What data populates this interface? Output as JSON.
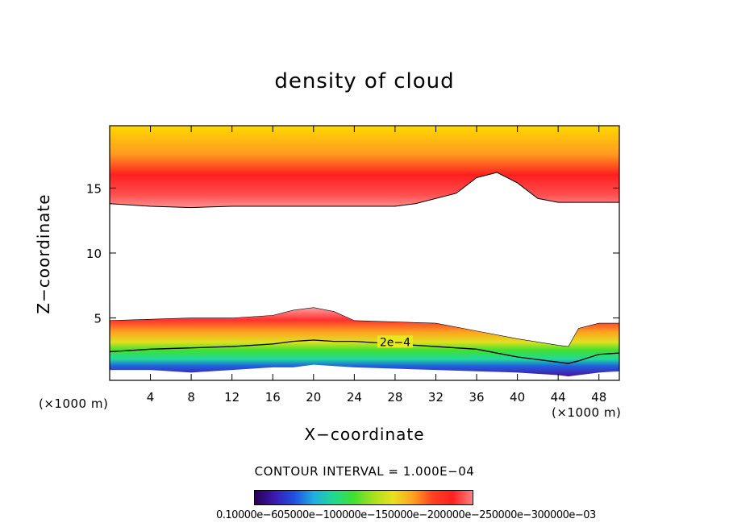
{
  "chart_data": {
    "type": "heatmap",
    "title": "density of cloud",
    "xlabel": "X−coordinate",
    "ylabel": "Z−coordinate",
    "x_unit_label_left": "(×1000 m)",
    "x_unit_label_right": "(×1000 m)",
    "xlim": [
      0,
      50
    ],
    "ylim": [
      0.2,
      19.8
    ],
    "x_ticks": [
      4,
      8,
      12,
      16,
      20,
      24,
      28,
      32,
      36,
      40,
      44,
      48
    ],
    "y_ticks": [
      5,
      10,
      15
    ],
    "contour_interval_text": "CONTOUR INTERVAL = 1.000E−04",
    "contour_label": "2e−4",
    "colorbar_labels_text": "0.10000e−605000e−100000e−150000e−200000e−250000e−300000e−03",
    "colorbar_stops": [
      "#2a0050",
      "#3a1ab0",
      "#2050e0",
      "#20b0e0",
      "#20d890",
      "#40e030",
      "#a8e020",
      "#e8e020",
      "#ffa020",
      "#ff4020",
      "#ff2020",
      "#ff8080"
    ],
    "upper_cloud_layer": {
      "base_z": [
        13.8,
        13.6,
        13.5,
        13.6,
        13.6,
        13.6,
        13.6,
        13.6,
        13.8,
        14.6,
        15.8,
        16.2,
        15.4,
        14.2,
        13.9,
        13.9,
        13.9
      ],
      "base_x": [
        0,
        4,
        8,
        12,
        16,
        20,
        24,
        28,
        30,
        34,
        36,
        38,
        40,
        42,
        44,
        48,
        50
      ],
      "top_z": 19.8
    },
    "lower_cloud_layer": {
      "x": [
        0,
        4,
        8,
        12,
        16,
        18,
        20,
        22,
        24,
        28,
        32,
        36,
        40,
        44,
        45,
        46,
        48,
        50
      ],
      "top_z": [
        4.8,
        4.9,
        5.0,
        5.0,
        5.2,
        5.6,
        5.8,
        5.5,
        4.8,
        4.7,
        4.6,
        4.0,
        3.4,
        2.9,
        2.8,
        4.2,
        4.6,
        4.6
      ],
      "contour_2e4_z": [
        2.4,
        2.6,
        2.7,
        2.8,
        3.0,
        3.2,
        3.3,
        3.2,
        3.2,
        3.0,
        2.8,
        2.6,
        2.0,
        1.6,
        1.5,
        1.7,
        2.2,
        2.3
      ],
      "base_z": [
        1.0,
        1.0,
        0.8,
        1.0,
        1.2,
        1.2,
        1.4,
        1.3,
        1.2,
        1.1,
        1.0,
        0.9,
        0.8,
        0.6,
        0.5,
        0.6,
        0.8,
        0.9
      ]
    },
    "legend": "bottom colorbar",
    "grid": false
  },
  "colors": {
    "frame": "#000000",
    "background": "#ffffff"
  }
}
